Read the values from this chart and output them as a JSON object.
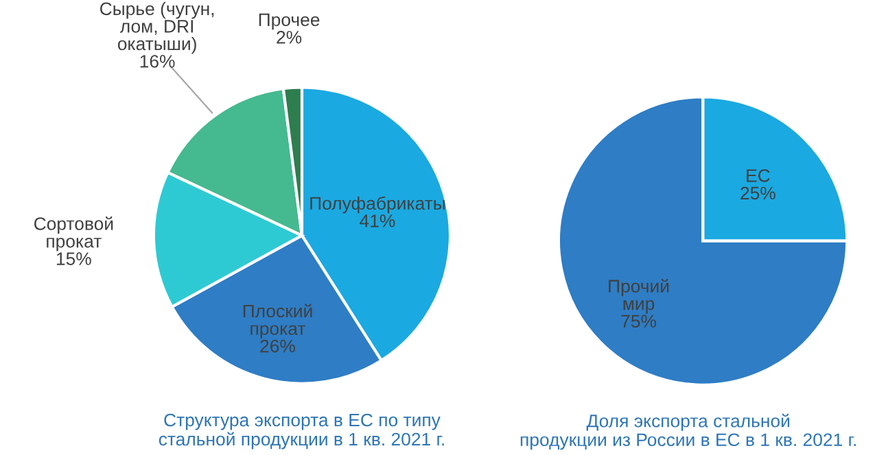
{
  "chart_data": [
    {
      "type": "pie",
      "title": "Структура экспорта в ЕС по типу\nстальной продукции в 1 кв. 2021 г.",
      "categories": [
        "Полуфабрикаты",
        "Плоский\nпрокат",
        "Сортовой\nпрокат",
        "Сырье (чугун,\nлом, DRI\nокатыши)",
        "Прочее"
      ],
      "values": [
        41,
        26,
        15,
        16,
        2
      ],
      "value_labels": [
        "41%",
        "26%",
        "15%",
        "16%",
        "2%"
      ],
      "colors": [
        "#1ba9e1",
        "#2e7dc5",
        "#2ecad3",
        "#45b98f",
        "#2e7d4f"
      ]
    },
    {
      "type": "pie",
      "title": "Доля экспорта стальной\nпродукции из России в ЕС в 1 кв. 2021 г.",
      "categories": [
        "ЕС",
        "Прочий\nмир"
      ],
      "values": [
        25,
        75
      ],
      "value_labels": [
        "25%",
        "75%"
      ],
      "colors": [
        "#1ba9e1",
        "#2e7dc5"
      ]
    }
  ]
}
